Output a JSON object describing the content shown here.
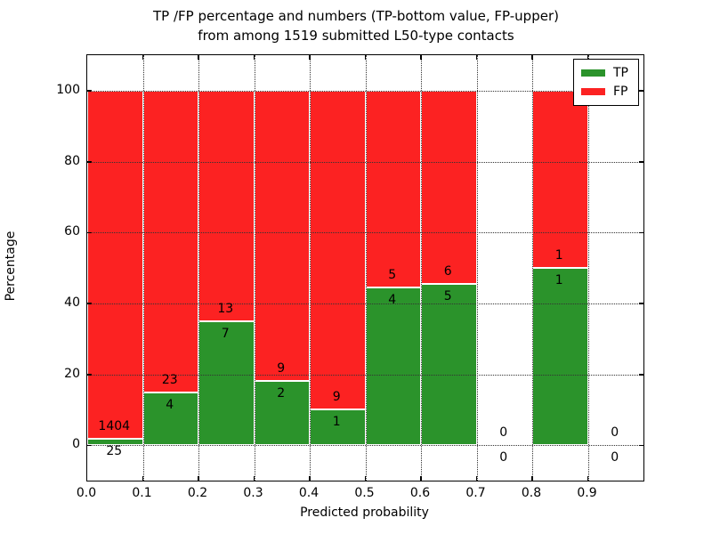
{
  "title_line1": "TP /FP percentage and numbers (TP-bottom value, FP-upper)",
  "title_line2": "from among 1519 submitted L50-type contacts",
  "axes": {
    "xlabel": "Predicted probability",
    "ylabel": "Percentage",
    "xtick_labels": [
      "0.0",
      "0.1",
      "0.2",
      "0.3",
      "0.4",
      "0.5",
      "0.6",
      "0.7",
      "0.8",
      "0.9"
    ],
    "ytick_values": [
      0,
      20,
      40,
      60,
      80,
      100
    ],
    "xlim": [
      0.0,
      1.0
    ],
    "ylim": [
      -10,
      110
    ],
    "grid_style": "dotted"
  },
  "legend": {
    "position": "upper-right",
    "items": [
      {
        "label": "TP",
        "color": "#2B932B"
      },
      {
        "label": "FP",
        "color": "#FC2222"
      }
    ]
  },
  "colors": {
    "tp": "#2B932B",
    "fp": "#FC2222",
    "grid": "#333333",
    "axis": "#000000",
    "background": "#FFFFFF"
  },
  "chart_data": {
    "type": "bar",
    "stacked": true,
    "normalized": "each bin stacks to 100%",
    "title": "TP /FP percentage and numbers (TP-bottom value, FP-upper) from among 1519 submitted L50-type contacts",
    "xlabel": "Predicted probability",
    "ylabel": "Percentage",
    "total_contacts": 1519,
    "bin_width": 0.1,
    "series_order_bottom_to_top": [
      "TP",
      "FP"
    ],
    "bins": [
      {
        "x_range": [
          0.0,
          0.1
        ],
        "tp_count": 25,
        "fp_count": 1404,
        "tp_percent": 1.7
      },
      {
        "x_range": [
          0.1,
          0.2
        ],
        "tp_count": 4,
        "fp_count": 23,
        "tp_percent": 14.8
      },
      {
        "x_range": [
          0.2,
          0.3
        ],
        "tp_count": 7,
        "fp_count": 13,
        "tp_percent": 35.0
      },
      {
        "x_range": [
          0.3,
          0.4
        ],
        "tp_count": 2,
        "fp_count": 9,
        "tp_percent": 18.2
      },
      {
        "x_range": [
          0.4,
          0.5
        ],
        "tp_count": 1,
        "fp_count": 9,
        "tp_percent": 10.0
      },
      {
        "x_range": [
          0.5,
          0.6
        ],
        "tp_count": 4,
        "fp_count": 5,
        "tp_percent": 44.4
      },
      {
        "x_range": [
          0.6,
          0.7
        ],
        "tp_count": 5,
        "fp_count": 6,
        "tp_percent": 45.5
      },
      {
        "x_range": [
          0.7,
          0.8
        ],
        "tp_count": 0,
        "fp_count": 0,
        "tp_percent": null
      },
      {
        "x_range": [
          0.8,
          0.9
        ],
        "tp_count": 1,
        "fp_count": 1,
        "tp_percent": 50.0
      },
      {
        "x_range": [
          0.9,
          1.0
        ],
        "tp_count": 0,
        "fp_count": 0,
        "tp_percent": null
      }
    ]
  }
}
